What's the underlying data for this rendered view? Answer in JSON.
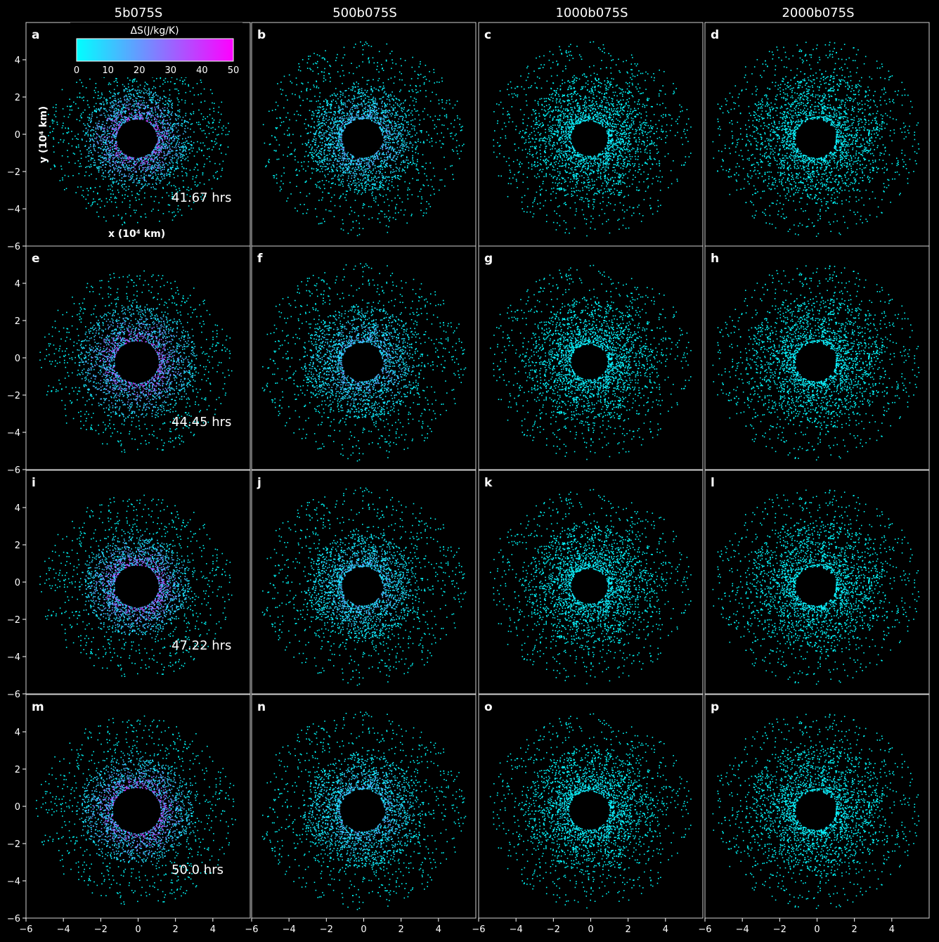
{
  "colors": {
    "background": "#000000",
    "axes": "#ffffff",
    "low": "#00ffff",
    "high": "#ff00ff"
  },
  "column_titles": [
    "5b075S",
    "500b075S",
    "1000b075S",
    "2000b075S"
  ],
  "row_times": [
    "41.67 hrs",
    "44.45 hrs",
    "47.22 hrs",
    "50.0 hrs"
  ],
  "panel_labels": [
    "a",
    "b",
    "c",
    "d",
    "e",
    "f",
    "g",
    "h",
    "i",
    "j",
    "k",
    "l",
    "m",
    "n",
    "o",
    "p"
  ],
  "colorbar": {
    "label": "ΔS(J/kg/K)",
    "min": 0,
    "max": 50,
    "ticks": [
      "0",
      "10",
      "20",
      "30",
      "40",
      "50"
    ]
  },
  "chart_data": {
    "type": "scatter",
    "xlabel": "x (10⁴ km)",
    "ylabel": "y (10⁴ km)",
    "xlim": [
      -6,
      6
    ],
    "ylim": [
      -6,
      6
    ],
    "x_ticks": [
      "−6",
      "−4",
      "−2",
      "0",
      "2",
      "4"
    ],
    "y_ticks": [
      "−6",
      "−4",
      "−2",
      "0",
      "2",
      "4"
    ],
    "grid": false,
    "panels": [
      {
        "label": "a",
        "column": "5b075S",
        "time": "41.67 hrs",
        "entropy_level": 0.75,
        "hole_radius": 1.1,
        "disk_radius": 2.8,
        "halo_radius": 5.0
      },
      {
        "label": "b",
        "column": "500b075S",
        "time": "41.67 hrs",
        "entropy_level": 0.4,
        "hole_radius": 1.1,
        "disk_radius": 3.0,
        "halo_radius": 5.5
      },
      {
        "label": "c",
        "column": "1000b075S",
        "time": "41.67 hrs",
        "entropy_level": 0.1,
        "hole_radius": 1.0,
        "disk_radius": 3.5,
        "halo_radius": 5.5
      },
      {
        "label": "d",
        "column": "2000b075S",
        "time": "41.67 hrs",
        "entropy_level": 0.08,
        "hole_radius": 1.1,
        "disk_radius": 3.8,
        "halo_radius": 5.6
      },
      {
        "label": "e",
        "column": "5b075S",
        "time": "44.45 hrs",
        "entropy_level": 0.75,
        "hole_radius": 1.2,
        "disk_radius": 3.2,
        "halo_radius": 5.2
      },
      {
        "label": "f",
        "column": "500b075S",
        "time": "44.45 hrs",
        "entropy_level": 0.4,
        "hole_radius": 1.1,
        "disk_radius": 3.2,
        "halo_radius": 5.6
      },
      {
        "label": "g",
        "column": "1000b075S",
        "time": "44.45 hrs",
        "entropy_level": 0.1,
        "hole_radius": 1.0,
        "disk_radius": 3.5,
        "halo_radius": 5.5
      },
      {
        "label": "h",
        "column": "2000b075S",
        "time": "44.45 hrs",
        "entropy_level": 0.08,
        "hole_radius": 1.1,
        "disk_radius": 3.8,
        "halo_radius": 5.6
      },
      {
        "label": "i",
        "column": "5b075S",
        "time": "47.22 hrs",
        "entropy_level": 0.75,
        "hole_radius": 1.2,
        "disk_radius": 2.8,
        "halo_radius": 5.2
      },
      {
        "label": "j",
        "column": "500b075S",
        "time": "47.22 hrs",
        "entropy_level": 0.35,
        "hole_radius": 1.1,
        "disk_radius": 3.0,
        "halo_radius": 5.6
      },
      {
        "label": "k",
        "column": "1000b075S",
        "time": "47.22 hrs",
        "entropy_level": 0.1,
        "hole_radius": 1.0,
        "disk_radius": 3.5,
        "halo_radius": 5.5
      },
      {
        "label": "l",
        "column": "2000b075S",
        "time": "47.22 hrs",
        "entropy_level": 0.08,
        "hole_radius": 1.1,
        "disk_radius": 3.8,
        "halo_radius": 5.6
      },
      {
        "label": "m",
        "column": "5b075S",
        "time": "50.0 hrs",
        "entropy_level": 0.75,
        "hole_radius": 1.3,
        "disk_radius": 3.0,
        "halo_radius": 5.4
      },
      {
        "label": "n",
        "column": "500b075S",
        "time": "50.0 hrs",
        "entropy_level": 0.35,
        "hole_radius": 1.2,
        "disk_radius": 3.2,
        "halo_radius": 5.6
      },
      {
        "label": "o",
        "column": "1000b075S",
        "time": "50.0 hrs",
        "entropy_level": 0.1,
        "hole_radius": 1.1,
        "disk_radius": 3.5,
        "halo_radius": 5.5
      },
      {
        "label": "p",
        "column": "2000b075S",
        "time": "50.0 hrs",
        "entropy_level": 0.08,
        "hole_radius": 1.1,
        "disk_radius": 3.8,
        "halo_radius": 5.6
      }
    ]
  }
}
